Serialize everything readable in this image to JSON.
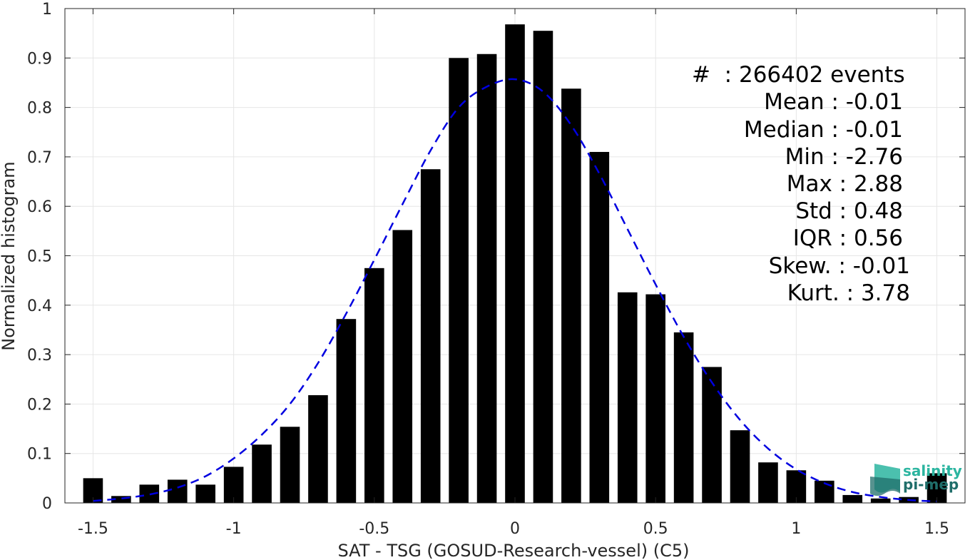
{
  "chart_data": {
    "type": "bar",
    "xlabel": "SAT - TSG (GOSUD-Research-vessel) (C5)",
    "ylabel": "Normalized histogram",
    "xlim": [
      -1.6,
      1.6
    ],
    "ylim": [
      0,
      1
    ],
    "grid": true,
    "xticks": [
      -1.5,
      -1,
      -0.5,
      0,
      0.5,
      1,
      1.5
    ],
    "xtick_labels": [
      "-1.5",
      "-1",
      "-0.5",
      "0",
      "0.5",
      "1",
      "1.5"
    ],
    "yticks": [
      0,
      0.1,
      0.2,
      0.3,
      0.4,
      0.5,
      0.6,
      0.7,
      0.8,
      0.9,
      1
    ],
    "ytick_labels": [
      "0",
      "0.1",
      "0.2",
      "0.3",
      "0.4",
      "0.5",
      "0.6",
      "0.7",
      "0.8",
      "0.9",
      "1"
    ],
    "bar_width": 0.07,
    "bar_color": "#000000",
    "x": [
      -1.5,
      -1.4,
      -1.3,
      -1.2,
      -1.1,
      -1.0,
      -0.9,
      -0.8,
      -0.7,
      -0.6,
      -0.5,
      -0.4,
      -0.3,
      -0.2,
      -0.1,
      0.0,
      0.1,
      0.2,
      0.3,
      0.4,
      0.5,
      0.6,
      0.7,
      0.8,
      0.9,
      1.0,
      1.1,
      1.2,
      1.3,
      1.4,
      1.5
    ],
    "values": [
      0.05,
      0.014,
      0.037,
      0.047,
      0.037,
      0.073,
      0.118,
      0.154,
      0.218,
      0.372,
      0.475,
      0.552,
      0.675,
      0.9,
      0.908,
      0.968,
      0.955,
      0.838,
      0.71,
      0.426,
      0.422,
      0.345,
      0.275,
      0.147,
      0.082,
      0.066,
      0.045,
      0.016,
      0.009,
      0.012,
      0.06
    ],
    "fit_curve": {
      "style": "dashed",
      "color": "#0000e0",
      "x": [
        -1.5,
        -1.4,
        -1.3,
        -1.2,
        -1.1,
        -1.0,
        -0.9,
        -0.8,
        -0.7,
        -0.6,
        -0.5,
        -0.4,
        -0.3,
        -0.2,
        -0.1,
        0.0,
        0.1,
        0.2,
        0.3,
        0.4,
        0.5,
        0.6,
        0.7,
        0.8,
        0.9,
        1.0,
        1.1,
        1.2,
        1.3,
        1.4,
        1.5
      ],
      "y": [
        0.004,
        0.009,
        0.017,
        0.031,
        0.054,
        0.09,
        0.138,
        0.2,
        0.283,
        0.383,
        0.492,
        0.604,
        0.713,
        0.8,
        0.842,
        0.857,
        0.832,
        0.764,
        0.666,
        0.554,
        0.442,
        0.336,
        0.244,
        0.168,
        0.11,
        0.068,
        0.04,
        0.022,
        0.012,
        0.006,
        0.003
      ]
    },
    "annotations": [
      "#  : 266402 events",
      "Mean : -0.01",
      "Median : -0.01",
      "Min : -2.76",
      "Max : 2.88",
      "Std : 0.48",
      "IQR : 0.56",
      "Skew. : -0.01",
      "Kurt. : 3.78"
    ]
  },
  "logo": {
    "line1": "salinity",
    "line2": "pi-mep",
    "color_primary": "#2bb5a0",
    "color_dark": "#1f6e6a"
  }
}
